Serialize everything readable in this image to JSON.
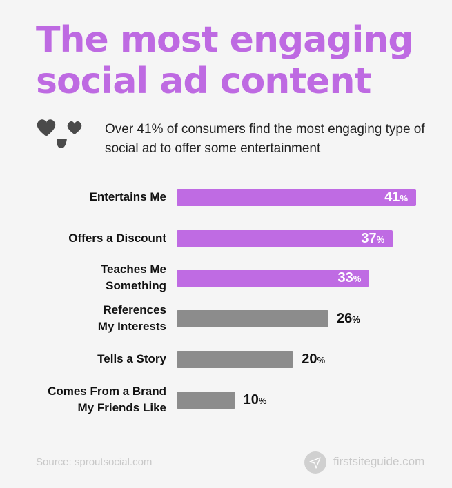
{
  "chart_data": {
    "type": "bar",
    "orientation": "horizontal",
    "title": "The most engaging social ad content",
    "subtitle": "Over 41% of consumers find the most engaging type of social ad to offer some entertainment",
    "categories": [
      [
        "Entertains Me"
      ],
      [
        "Offers a Discount"
      ],
      [
        "Teaches Me",
        "Something"
      ],
      [
        "References",
        "My Interests"
      ],
      [
        "Tells a Story"
      ],
      [
        "Comes From a Brand",
        "My Friends Like"
      ]
    ],
    "values": [
      41,
      37,
      33,
      26,
      20,
      10
    ],
    "unit": "%",
    "highlighted": [
      true,
      true,
      true,
      false,
      false,
      false
    ],
    "colors": {
      "highlight": "#bf6be3",
      "other": "#8c8c8c",
      "title": "#be6ae2"
    },
    "xlim": [
      0,
      41
    ],
    "grid": false
  },
  "icon": "heart-eyes-face-icon",
  "footer": {
    "source": "Source: sproutsocial.com",
    "brand": "firstsiteguide.com",
    "brand_icon": "paper-plane-icon"
  }
}
